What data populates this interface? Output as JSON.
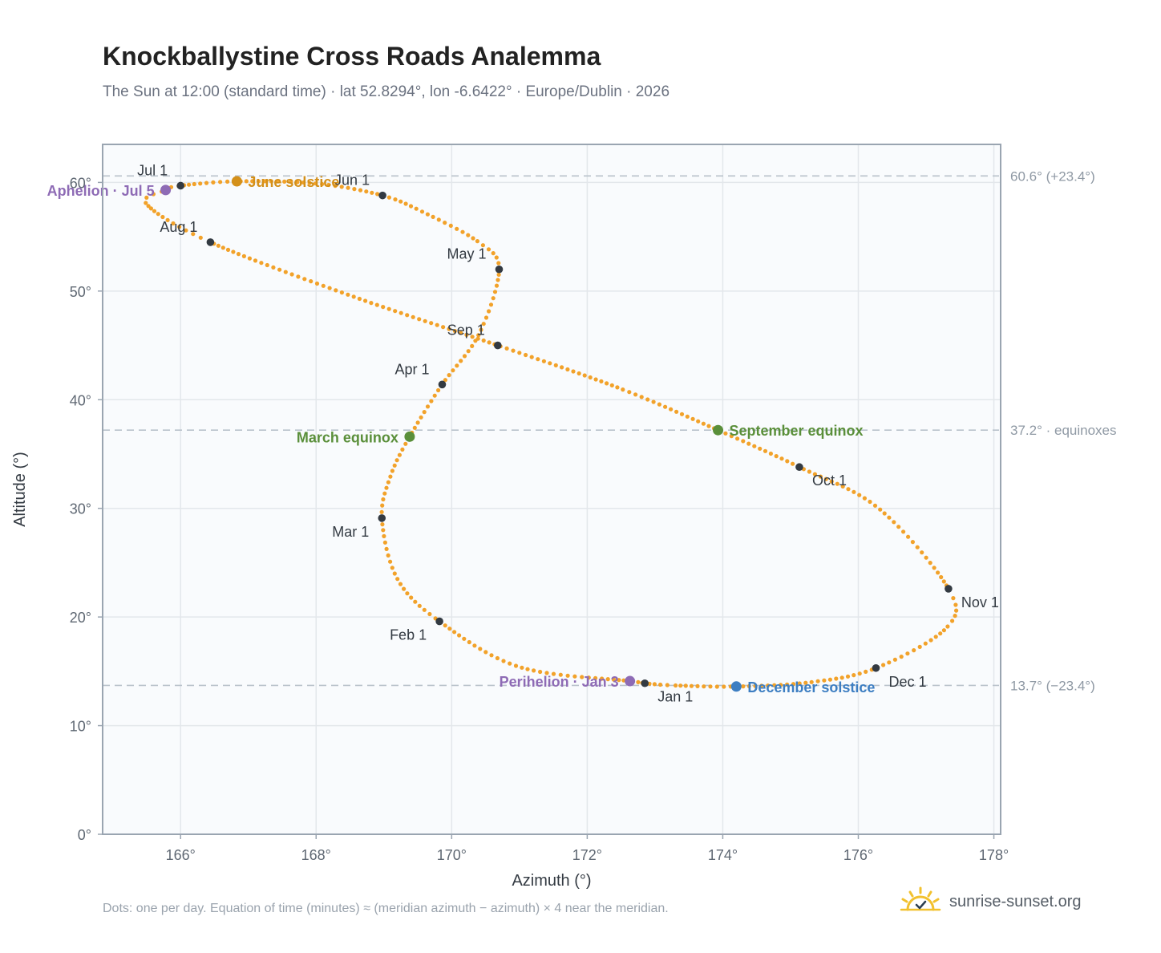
{
  "title": "Knockballystine Cross Roads Analemma",
  "subtitle": "The Sun at 12:00 (standard time) · lat 52.8294°, lon -6.6422° · Europe/Dublin · 2026",
  "footnote": "Dots: one per day. Equation of time (minutes) ≈ (meridian azimuth − azimuth) × 4 near the meridian.",
  "brand": {
    "name": "sunrise-sunset.org",
    "icon": "sun-logo-icon"
  },
  "colors": {
    "curve": "#f2a22a",
    "month_marker": "#333a42",
    "equinox": "#5a8f3a",
    "solstice_june": "#d4901a",
    "solstice_december": "#3d7ec2",
    "apsis": "#8e6bb5",
    "reference_line": "#b9c2cb",
    "grid": "#e3e7eb",
    "plot_bg": "#f9fbfd",
    "axis": "#9aa5b1"
  },
  "chart_data": {
    "type": "scatter",
    "xlabel": "Azimuth (°)",
    "ylabel": "Altitude (°)",
    "xlim": [
      164.85,
      178.1
    ],
    "ylim": [
      0,
      63.5
    ],
    "x_ticks": [
      166,
      168,
      170,
      172,
      174,
      176,
      178
    ],
    "x_tick_labels": [
      "166°",
      "168°",
      "170°",
      "172°",
      "174°",
      "176°",
      "178°"
    ],
    "y_ticks": [
      0,
      10,
      20,
      30,
      40,
      50,
      60
    ],
    "y_tick_labels": [
      "0°",
      "10°",
      "20°",
      "30°",
      "40°",
      "50°",
      "60°"
    ],
    "grid": true,
    "reference_lines": [
      {
        "y": 60.6,
        "label": "60.6° (+23.4°)"
      },
      {
        "y": 37.2,
        "label": "37.2° · equinoxes"
      },
      {
        "y": 13.7,
        "label": "13.7° (−23.4°)"
      }
    ],
    "path_points": [
      {
        "x": 172.85,
        "y": 13.9
      },
      {
        "x": 172.63,
        "y": 14.1
      },
      {
        "x": 171.0,
        "y": 15.4
      },
      {
        "x": 169.82,
        "y": 19.6
      },
      {
        "x": 169.2,
        "y": 23.5
      },
      {
        "x": 168.97,
        "y": 29.1
      },
      {
        "x": 169.1,
        "y": 33.0
      },
      {
        "x": 169.38,
        "y": 36.6
      },
      {
        "x": 169.86,
        "y": 41.4
      },
      {
        "x": 170.4,
        "y": 46.0
      },
      {
        "x": 170.7,
        "y": 52.0
      },
      {
        "x": 170.4,
        "y": 54.5
      },
      {
        "x": 169.6,
        "y": 57.2
      },
      {
        "x": 168.98,
        "y": 58.8
      },
      {
        "x": 168.0,
        "y": 59.9
      },
      {
        "x": 166.83,
        "y": 60.1
      },
      {
        "x": 166.0,
        "y": 59.7
      },
      {
        "x": 165.78,
        "y": 59.3
      },
      {
        "x": 165.5,
        "y": 58.0
      },
      {
        "x": 166.44,
        "y": 54.5
      },
      {
        "x": 168.5,
        "y": 49.6
      },
      {
        "x": 170.68,
        "y": 45.0
      },
      {
        "x": 172.5,
        "y": 41.0
      },
      {
        "x": 173.93,
        "y": 37.2
      },
      {
        "x": 175.13,
        "y": 33.8
      },
      {
        "x": 176.3,
        "y": 30.0
      },
      {
        "x": 177.33,
        "y": 22.6
      },
      {
        "x": 177.3,
        "y": 19.0
      },
      {
        "x": 176.26,
        "y": 15.3
      },
      {
        "x": 175.3,
        "y": 14.0
      },
      {
        "x": 174.2,
        "y": 13.6
      },
      {
        "x": 173.3,
        "y": 13.7
      },
      {
        "x": 172.85,
        "y": 13.9
      }
    ],
    "month_markers": [
      {
        "label": "Jan 1",
        "x": 172.85,
        "y": 13.9,
        "anchor": "below-right"
      },
      {
        "label": "Feb 1",
        "x": 169.82,
        "y": 19.6,
        "anchor": "below-left"
      },
      {
        "label": "Mar 1",
        "x": 168.97,
        "y": 29.1,
        "anchor": "below-left"
      },
      {
        "label": "Apr 1",
        "x": 169.86,
        "y": 41.4,
        "anchor": "above-left"
      },
      {
        "label": "May 1",
        "x": 170.7,
        "y": 52.0,
        "anchor": "above-left"
      },
      {
        "label": "Jun 1",
        "x": 168.98,
        "y": 58.8,
        "anchor": "above-left"
      },
      {
        "label": "Jul 1",
        "x": 166.0,
        "y": 59.7,
        "anchor": "above-left"
      },
      {
        "label": "Aug 1",
        "x": 166.44,
        "y": 54.5,
        "anchor": "above-left"
      },
      {
        "label": "Sep 1",
        "x": 170.68,
        "y": 45.0,
        "anchor": "above-left"
      },
      {
        "label": "Oct 1",
        "x": 175.13,
        "y": 33.8,
        "anchor": "below-right"
      },
      {
        "label": "Nov 1",
        "x": 177.33,
        "y": 22.6,
        "anchor": "below-right"
      },
      {
        "label": "Dec 1",
        "x": 176.26,
        "y": 15.3,
        "anchor": "below-right"
      }
    ],
    "events": [
      {
        "label": "June solstice",
        "x": 166.83,
        "y": 60.1,
        "color": "#d4901a",
        "side": "right"
      },
      {
        "label": "March equinox",
        "x": 169.38,
        "y": 36.6,
        "color": "#5a8f3a",
        "side": "left"
      },
      {
        "label": "September equinox",
        "x": 173.93,
        "y": 37.2,
        "color": "#5a8f3a",
        "side": "right"
      },
      {
        "label": "December solstice",
        "x": 174.2,
        "y": 13.6,
        "color": "#3d7ec2",
        "side": "right"
      },
      {
        "label": "Aphelion · Jul 5",
        "x": 165.78,
        "y": 59.3,
        "color": "#8e6bb5",
        "side": "left"
      },
      {
        "label": "Perihelion · Jan 3",
        "x": 172.63,
        "y": 14.1,
        "color": "#8e6bb5",
        "side": "left"
      }
    ]
  }
}
